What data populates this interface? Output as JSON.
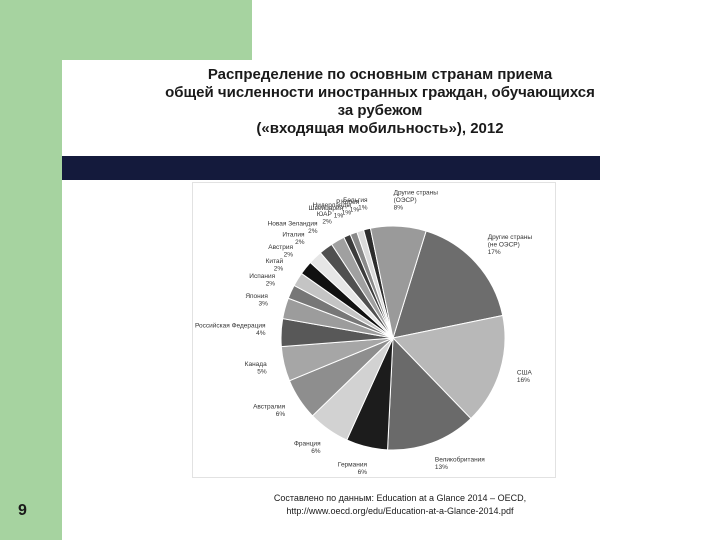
{
  "title_lines": [
    "Распределение по основным странам приема",
    "общей численности иностранных граждан, обучающихся",
    "за рубежом",
    "(«входящая мобильность»), 2012"
  ],
  "page_number": "9",
  "source_lines": [
    "Составлено по данным: Education at a Glance 2014 – OECD,",
    "http://www.oecd.org/edu/Education-at-a-Glance-2014.pdf"
  ],
  "colors": {
    "green_band": "#a6d3a0",
    "navy_bar": "#141a3c"
  },
  "chart_data": {
    "type": "pie",
    "slices": [
      {
        "label": "Другие страны",
        "sublabel": "(не ОЭСР)",
        "value": 17,
        "value_label": "17%",
        "color": "#6d6d6d"
      },
      {
        "label": "США",
        "value": 16,
        "value_label": "16%",
        "color": "#b8b8b8"
      },
      {
        "label": "Великобритания",
        "value": 13,
        "value_label": "13%",
        "color": "#6a6a6a"
      },
      {
        "label": "Германия",
        "value": 6,
        "value_label": "6%",
        "color": "#1c1c1c"
      },
      {
        "label": "Франция",
        "value": 6,
        "value_label": "6%",
        "color": "#d2d2d2"
      },
      {
        "label": "Австралия",
        "value": 6,
        "value_label": "6%",
        "color": "#8e8e8e"
      },
      {
        "label": "Канада",
        "value": 5,
        "value_label": "5%",
        "color": "#a6a6a6"
      },
      {
        "label": "Российская Федерация",
        "value": 4,
        "value_label": "4%",
        "color": "#585858"
      },
      {
        "label": "Япония",
        "value": 3,
        "value_label": "3%",
        "color": "#9c9c9c"
      },
      {
        "label": "Испания",
        "value": 2,
        "value_label": "2%",
        "color": "#777777"
      },
      {
        "label": "Китай",
        "value": 2,
        "value_label": "2%",
        "color": "#c4c4c4"
      },
      {
        "label": "Австрия",
        "value": 2,
        "value_label": "2%",
        "color": "#111111"
      },
      {
        "label": "Италия",
        "value": 2,
        "value_label": "2%",
        "color": "#e6e6e6"
      },
      {
        "label": "Новая Зеландия",
        "value": 2,
        "value_label": "2%",
        "color": "#505050"
      },
      {
        "label": "ЮАР",
        "value": 2,
        "value_label": "2%",
        "color": "#a0a0a0"
      },
      {
        "label": "Швейцария",
        "value": 1,
        "value_label": "1%",
        "color": "#3c3c3c"
      },
      {
        "label": "Нидерланды",
        "value": 1,
        "value_label": "1%",
        "color": "#8a8a8a"
      },
      {
        "label": "Р.Корея",
        "value": 1,
        "value_label": "1%",
        "color": "#dadada"
      },
      {
        "label": "Бельгия",
        "value": 1,
        "value_label": "1%",
        "color": "#2c2c2c"
      },
      {
        "label": "Другие страны",
        "sublabel": "(ОЭСР)",
        "value": 8,
        "value_label": "8%",
        "color": "#9a9a9a"
      }
    ]
  }
}
